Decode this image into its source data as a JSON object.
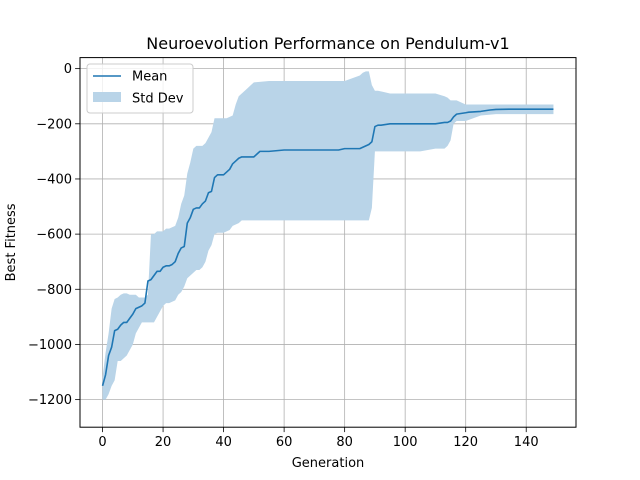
{
  "chart_data": {
    "type": "line",
    "title": "Neuroevolution Performance on Pendulum-v1",
    "xlabel": "Generation",
    "ylabel": "Best Fitness",
    "xlim": [
      -7.45,
      156.45
    ],
    "ylim": [
      -1300,
      40
    ],
    "xticks": [
      0,
      20,
      40,
      60,
      80,
      100,
      120,
      140
    ],
    "yticks": [
      0,
      -200,
      -400,
      -600,
      -800,
      -1000,
      -1200
    ],
    "grid": true,
    "legend_position": "top-left",
    "colors": {
      "mean": "#1f77b4",
      "band": "#b9d4e8",
      "grid": "#b0b0b0"
    },
    "series": [
      {
        "name": "Mean",
        "kind": "line",
        "x": [
          0,
          1,
          2,
          3,
          4,
          5,
          6,
          7,
          8,
          9,
          10,
          11,
          12,
          13,
          14,
          15,
          16,
          17,
          18,
          19,
          20,
          21,
          22,
          23,
          24,
          25,
          26,
          27,
          28,
          29,
          30,
          31,
          32,
          33,
          34,
          35,
          36,
          37,
          38,
          39,
          40,
          41,
          42,
          43,
          44,
          45,
          46,
          47,
          48,
          49,
          50,
          51,
          52,
          53,
          55,
          60,
          65,
          70,
          75,
          78,
          80,
          85,
          86,
          87,
          88,
          89,
          90,
          91,
          92,
          95,
          100,
          105,
          110,
          113,
          114,
          115,
          116,
          117,
          120,
          121,
          125,
          128,
          130,
          135,
          140,
          149
        ],
        "y": [
          -1150,
          -1110,
          -1040,
          -1010,
          -950,
          -945,
          -930,
          -920,
          -920,
          -905,
          -890,
          -870,
          -865,
          -860,
          -850,
          -770,
          -765,
          -750,
          -735,
          -735,
          -720,
          -715,
          -715,
          -710,
          -700,
          -670,
          -650,
          -645,
          -560,
          -540,
          -510,
          -505,
          -505,
          -490,
          -480,
          -450,
          -445,
          -395,
          -385,
          -385,
          -385,
          -375,
          -365,
          -345,
          -335,
          -325,
          -320,
          -320,
          -320,
          -320,
          -320,
          -310,
          -300,
          -300,
          -300,
          -295,
          -295,
          -295,
          -295,
          -295,
          -290,
          -290,
          -285,
          -280,
          -275,
          -265,
          -210,
          -205,
          -205,
          -200,
          -200,
          -200,
          -200,
          -195,
          -195,
          -190,
          -175,
          -165,
          -160,
          -158,
          -155,
          -150,
          -148,
          -147,
          -147,
          -147
        ]
      },
      {
        "name": "Std Dev",
        "kind": "band",
        "x": [
          0,
          1,
          2,
          3,
          4,
          5,
          6,
          7,
          8,
          9,
          10,
          11,
          12,
          13,
          14,
          15,
          16,
          17,
          18,
          19,
          20,
          21,
          22,
          23,
          24,
          25,
          26,
          27,
          28,
          29,
          30,
          31,
          32,
          33,
          34,
          35,
          36,
          37,
          38,
          39,
          40,
          41,
          42,
          43,
          44,
          45,
          46,
          47,
          48,
          49,
          50,
          55,
          60,
          70,
          75,
          80,
          85,
          86,
          87,
          88,
          89,
          90,
          91,
          95,
          100,
          105,
          110,
          113,
          114,
          115,
          116,
          117,
          120,
          125,
          130,
          135,
          140,
          149
        ],
        "upper": [
          -1120,
          -1030,
          -960,
          -870,
          -835,
          -830,
          -820,
          -815,
          -815,
          -820,
          -820,
          -820,
          -830,
          -830,
          -830,
          -820,
          -600,
          -600,
          -590,
          -590,
          -590,
          -580,
          -580,
          -575,
          -570,
          -540,
          -490,
          -460,
          -380,
          -340,
          -290,
          -280,
          -280,
          -280,
          -270,
          -250,
          -230,
          -180,
          -180,
          -180,
          -180,
          -180,
          -175,
          -170,
          -130,
          -100,
          -90,
          -80,
          -70,
          -60,
          -50,
          -45,
          -45,
          -45,
          -45,
          -45,
          -25,
          -15,
          -10,
          -10,
          -60,
          -80,
          -80,
          -90,
          -90,
          -90,
          -90,
          -100,
          -105,
          -115,
          -115,
          -115,
          -130,
          -130,
          -130,
          -130,
          -130,
          -130
        ],
        "lower": [
          -1200,
          -1200,
          -1180,
          -1150,
          -1130,
          -1060,
          -1060,
          -1050,
          -1040,
          -1020,
          -1000,
          -960,
          -940,
          -920,
          -920,
          -920,
          -920,
          -920,
          -900,
          -880,
          -860,
          -850,
          -850,
          -845,
          -840,
          -820,
          -810,
          -790,
          -760,
          -750,
          -740,
          -730,
          -730,
          -720,
          -700,
          -660,
          -640,
          -600,
          -595,
          -595,
          -595,
          -590,
          -585,
          -570,
          -565,
          -560,
          -550,
          -550,
          -550,
          -550,
          -550,
          -550,
          -550,
          -550,
          -550,
          -550,
          -550,
          -550,
          -550,
          -550,
          -505,
          -300,
          -300,
          -300,
          -300,
          -300,
          -290,
          -290,
          -280,
          -260,
          -200,
          -190,
          -190,
          -170,
          -165,
          -165,
          -165,
          -165
        ]
      }
    ]
  }
}
